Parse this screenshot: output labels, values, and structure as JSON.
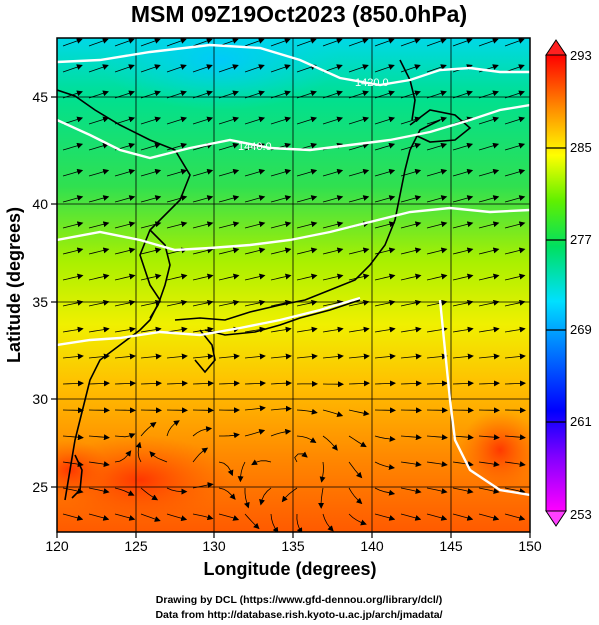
{
  "title": "MSM 09Z19Oct2023 (850.0hPa)",
  "map": {
    "xlabel": "Longitude (degrees)",
    "ylabel": "Latitude  (degrees)",
    "x_ticks": [
      "120",
      "125",
      "130",
      "135",
      "140",
      "145",
      "150"
    ],
    "y_ticks": [
      "25",
      "30",
      "35",
      "40",
      "45"
    ],
    "x_range": [
      120,
      150
    ],
    "y_range": [
      22.5,
      47.5
    ],
    "contour_labels": [
      "1420.0",
      "1440.0"
    ]
  },
  "colorbar": {
    "labels": [
      "293",
      "285",
      "277",
      "269",
      "261",
      "253"
    ],
    "range": [
      253,
      293
    ],
    "colors": [
      "#ff00ff",
      "#0000ff",
      "#00d0ff",
      "#00e060",
      "#a0ff00",
      "#ffff00",
      "#ff8000",
      "#ff0000"
    ]
  },
  "credits": {
    "line1": "Drawing by DCL (https://www.gfd-dennou.org/library/dcl/)",
    "line2": "Data from http://database.rish.kyoto-u.ac.jp/arch/jmadata/"
  }
}
